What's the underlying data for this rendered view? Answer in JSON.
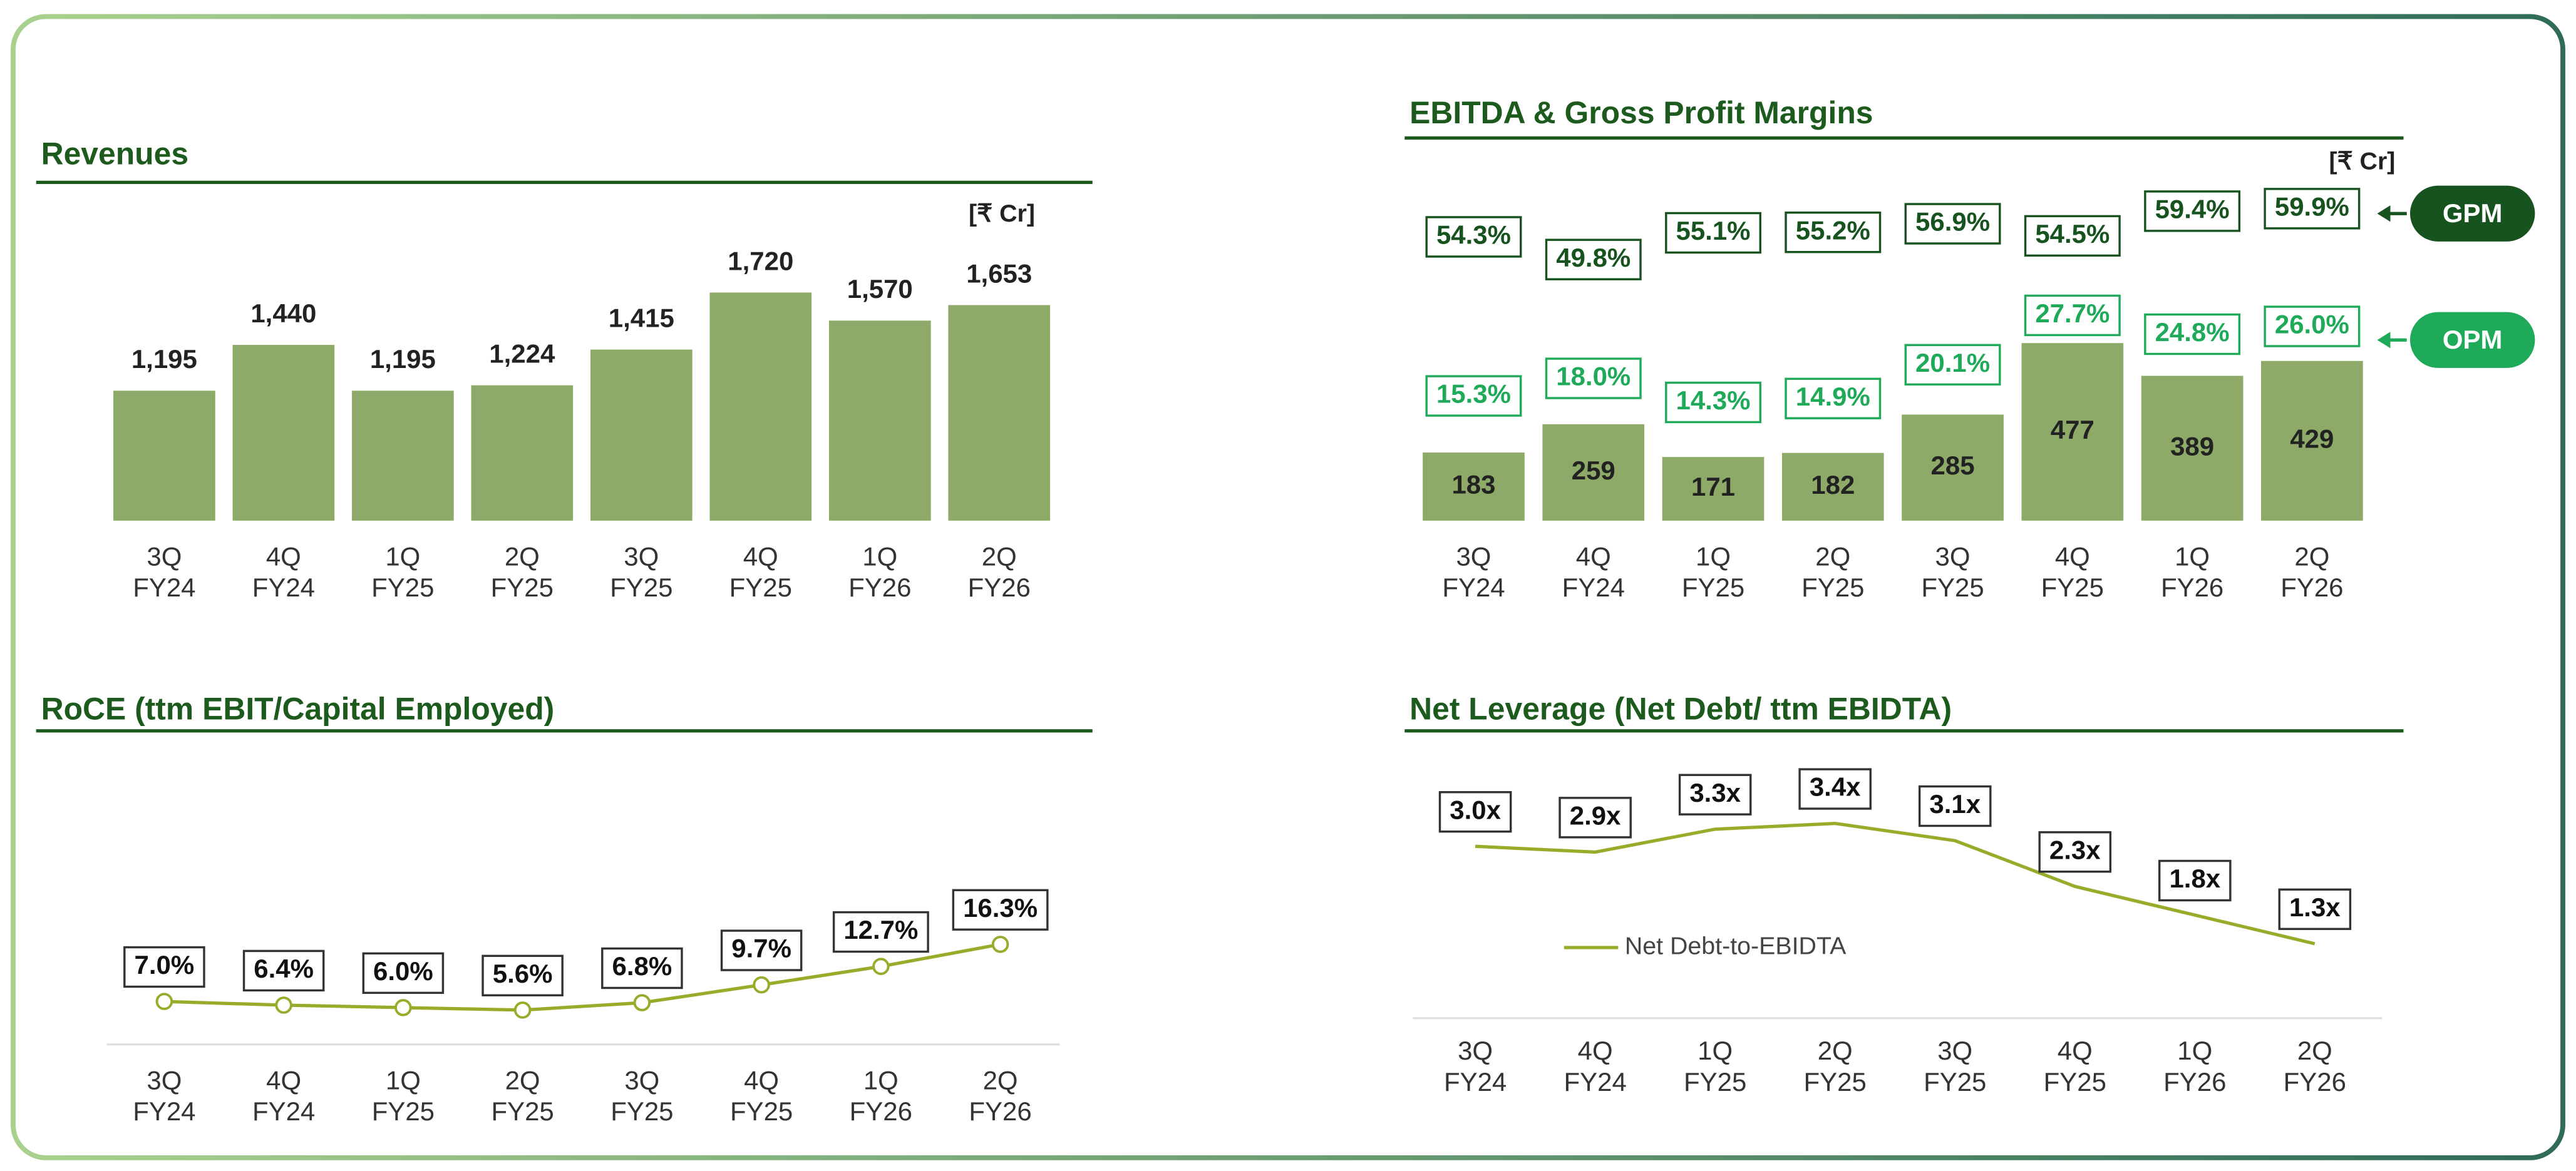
{
  "chart_data": [
    {
      "type": "bar",
      "title": "Revenues",
      "unit": "[₹ Cr]",
      "categories": [
        [
          "3Q",
          "FY24"
        ],
        [
          "4Q",
          "FY24"
        ],
        [
          "1Q",
          "FY25"
        ],
        [
          "2Q",
          "FY25"
        ],
        [
          "3Q",
          "FY25"
        ],
        [
          "4Q",
          "FY25"
        ],
        [
          "1Q",
          "FY26"
        ],
        [
          "2Q",
          "FY26"
        ]
      ],
      "values": [
        1195,
        1440,
        1195,
        1224,
        1415,
        1720,
        1570,
        1653
      ],
      "value_labels": [
        "1,195",
        "1,440",
        "1,195",
        "1,224",
        "1,415",
        "1,720",
        "1,570",
        "1,653"
      ],
      "color": "#8eaa68",
      "ylim": [
        500,
        1800
      ]
    },
    {
      "type": "bar",
      "title": "EBITDA & Gross Profit Margins",
      "unit": "[₹ Cr]",
      "categories": [
        [
          "3Q",
          "FY24"
        ],
        [
          "4Q",
          "FY24"
        ],
        [
          "1Q",
          "FY25"
        ],
        [
          "2Q",
          "FY25"
        ],
        [
          "3Q",
          "FY25"
        ],
        [
          "4Q",
          "FY25"
        ],
        [
          "1Q",
          "FY26"
        ],
        [
          "2Q",
          "FY26"
        ]
      ],
      "values": [
        183,
        259,
        171,
        182,
        285,
        477,
        389,
        429
      ],
      "color": "#8eaa68",
      "ylim": [
        0,
        600
      ],
      "series": [
        {
          "name": "GPM",
          "color": "#17531f",
          "values": [
            54.3,
            49.8,
            55.1,
            55.2,
            56.9,
            54.5,
            59.4,
            59.9
          ],
          "value_labels": [
            "54.3%",
            "49.8%",
            "55.1%",
            "55.2%",
            "56.9%",
            "54.5%",
            "59.4%",
            "59.9%"
          ]
        },
        {
          "name": "OPM",
          "color": "#1faa5a",
          "values": [
            15.3,
            18.0,
            14.3,
            14.9,
            20.1,
            27.7,
            24.8,
            26.0
          ],
          "value_labels": [
            "15.3%",
            "18.0%",
            "14.3%",
            "14.9%",
            "20.1%",
            "27.7%",
            "24.8%",
            "26.0%"
          ]
        }
      ]
    },
    {
      "type": "line",
      "title": "RoCE (ttm EBIT/Capital Employed)",
      "categories": [
        [
          "3Q",
          "FY24"
        ],
        [
          "4Q",
          "FY24"
        ],
        [
          "1Q",
          "FY25"
        ],
        [
          "2Q",
          "FY25"
        ],
        [
          "3Q",
          "FY25"
        ],
        [
          "4Q",
          "FY25"
        ],
        [
          "1Q",
          "FY26"
        ],
        [
          "2Q",
          "FY26"
        ]
      ],
      "ylim": [
        0,
        44
      ],
      "markers": true,
      "series": [
        {
          "color": "#9aab2c",
          "values": [
            7.0,
            6.4,
            6.0,
            5.6,
            6.8,
            9.7,
            12.7,
            16.3
          ],
          "value_labels": [
            "7.0%",
            "6.4%",
            "6.0%",
            "5.6%",
            "6.8%",
            "9.7%",
            "12.7%",
            "16.3%"
          ]
        }
      ]
    },
    {
      "type": "line",
      "title": "Net Leverage (Net Debt/ ttm EBIDTA)",
      "categories": [
        [
          "3Q",
          "FY24"
        ],
        [
          "4Q",
          "FY24"
        ],
        [
          "1Q",
          "FY25"
        ],
        [
          "2Q",
          "FY25"
        ],
        [
          "3Q",
          "FY25"
        ],
        [
          "4Q",
          "FY25"
        ],
        [
          "1Q",
          "FY26"
        ],
        [
          "2Q",
          "FY26"
        ]
      ],
      "ylim": [
        0,
        4.3
      ],
      "markers": false,
      "series": [
        {
          "name": "Net Debt-to-EBIDTA",
          "color": "#9aab2c",
          "values": [
            3.0,
            2.9,
            3.3,
            3.4,
            3.1,
            2.3,
            1.8,
            1.3
          ],
          "value_labels": [
            "3.0x",
            "2.9x",
            "3.3x",
            "3.4x",
            "3.1x",
            "2.3x",
            "1.8x",
            "1.3x"
          ]
        }
      ]
    }
  ]
}
